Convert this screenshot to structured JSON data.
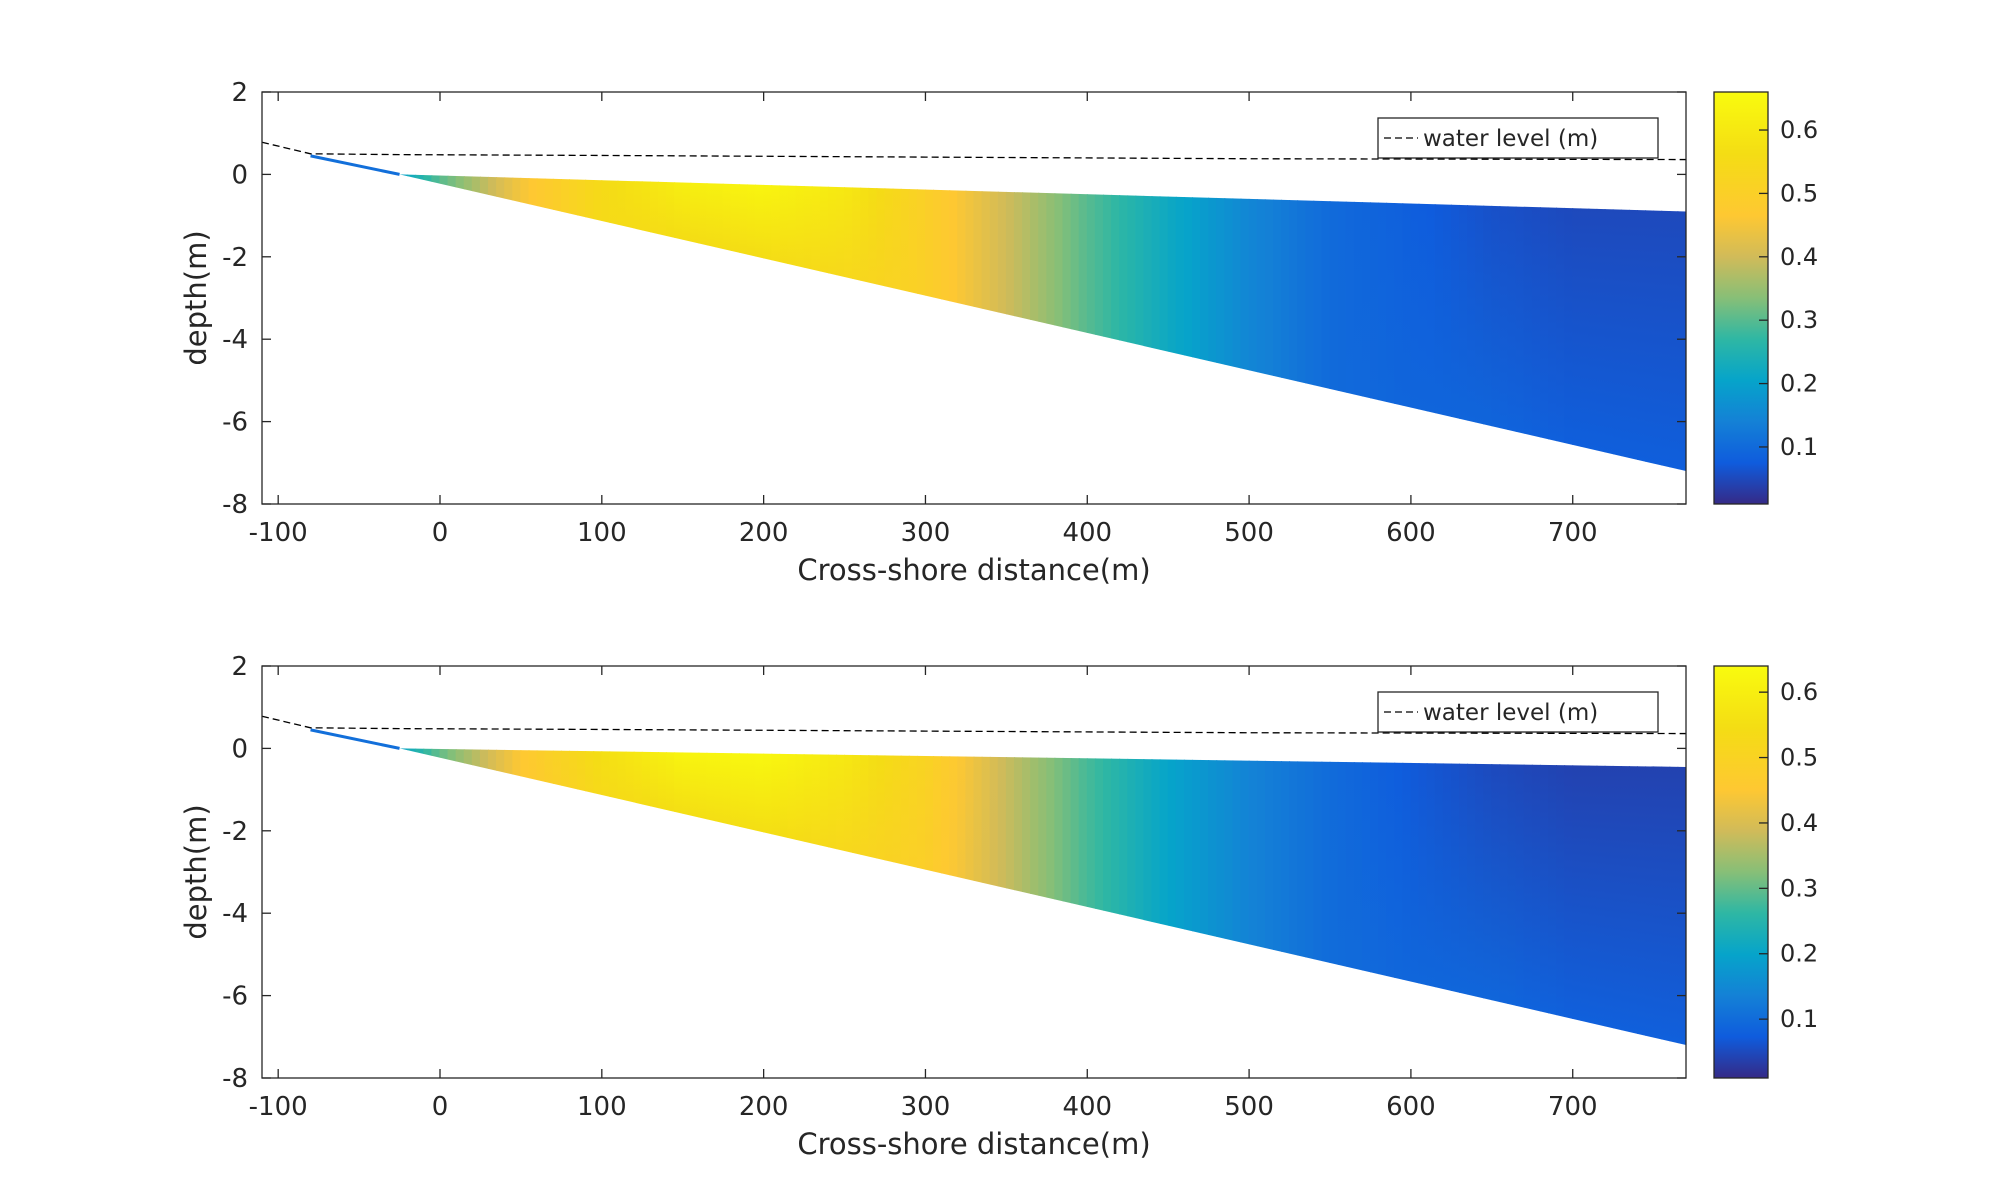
{
  "chart_data": [
    {
      "type": "heatmap",
      "xlabel": "Cross-shore distance(m)",
      "ylabel": "depth(m)",
      "xlim": [
        -110,
        770
      ],
      "ylim": [
        -8,
        2
      ],
      "xticks": [
        -100,
        0,
        100,
        200,
        300,
        400,
        500,
        600,
        700
      ],
      "xtick_labels": [
        "-100",
        "0",
        "100",
        "200",
        "300",
        "400",
        "500",
        "600",
        "700"
      ],
      "yticks": [
        2,
        0,
        -2,
        -4,
        -6,
        -8
      ],
      "ytick_labels": [
        "2",
        "0",
        "-2",
        "-4",
        "-6",
        "-8"
      ],
      "legend": {
        "label": "water level (m)",
        "location": "top-right"
      },
      "water_level": {
        "x": [
          -110,
          -80,
          -25,
          100,
          300,
          500,
          770
        ],
        "y": [
          0.78,
          0.5,
          0.48,
          0.46,
          0.42,
          0.38,
          0.36
        ]
      },
      "bed_profile": {
        "x": [
          -80,
          -25,
          770
        ],
        "y": [
          0.45,
          0.0,
          -7.2
        ]
      },
      "surface_profile": {
        "x": [
          -25,
          770
        ],
        "y": [
          0.0,
          -0.9
        ]
      },
      "field_profile": {
        "x": [
          -80,
          -25,
          0,
          50,
          100,
          150,
          200,
          250,
          300,
          350,
          400,
          450,
          500,
          550,
          600,
          650,
          700,
          770
        ],
        "top": [
          0.03,
          0.2,
          0.3,
          0.45,
          0.55,
          0.62,
          0.64,
          0.6,
          0.5,
          0.4,
          0.3,
          0.22,
          0.15,
          0.1,
          0.08,
          0.06,
          0.05,
          0.05
        ],
        "bed": [
          0.03,
          0.2,
          0.3,
          0.45,
          0.55,
          0.56,
          0.56,
          0.54,
          0.5,
          0.4,
          0.3,
          0.22,
          0.15,
          0.1,
          0.09,
          0.09,
          0.08,
          0.08
        ]
      },
      "colorbar": {
        "min": 0.01,
        "max": 0.66,
        "ticks": [
          0.1,
          0.2,
          0.3,
          0.4,
          0.5,
          0.6
        ],
        "tick_labels": [
          "0.1",
          "0.2",
          "0.3",
          "0.4",
          "0.5",
          "0.6"
        ]
      }
    },
    {
      "type": "heatmap",
      "xlabel": "Cross-shore distance(m)",
      "ylabel": "depth(m)",
      "xlim": [
        -110,
        770
      ],
      "ylim": [
        -8,
        2
      ],
      "xticks": [
        -100,
        0,
        100,
        200,
        300,
        400,
        500,
        600,
        700
      ],
      "xtick_labels": [
        "-100",
        "0",
        "100",
        "200",
        "300",
        "400",
        "500",
        "600",
        "700"
      ],
      "yticks": [
        2,
        0,
        -2,
        -4,
        -6,
        -8
      ],
      "ytick_labels": [
        "2",
        "0",
        "-2",
        "-4",
        "-6",
        "-8"
      ],
      "legend": {
        "label": "water level (m)",
        "location": "top-right"
      },
      "water_level": {
        "x": [
          -110,
          -80,
          -25,
          100,
          300,
          500,
          770
        ],
        "y": [
          0.78,
          0.5,
          0.48,
          0.46,
          0.42,
          0.38,
          0.36
        ]
      },
      "bed_profile": {
        "x": [
          -80,
          -25,
          770
        ],
        "y": [
          0.45,
          0.0,
          -7.2
        ]
      },
      "surface_profile": {
        "x": [
          -25,
          770
        ],
        "y": [
          0.0,
          -0.45
        ]
      },
      "field_profile": {
        "x": [
          -80,
          -25,
          0,
          50,
          100,
          150,
          200,
          250,
          300,
          350,
          400,
          450,
          500,
          550,
          600,
          650,
          700,
          770
        ],
        "top": [
          0.03,
          0.2,
          0.3,
          0.45,
          0.55,
          0.62,
          0.63,
          0.58,
          0.5,
          0.38,
          0.28,
          0.2,
          0.14,
          0.1,
          0.07,
          0.05,
          0.04,
          0.04
        ],
        "bed": [
          0.03,
          0.2,
          0.3,
          0.45,
          0.53,
          0.55,
          0.55,
          0.52,
          0.48,
          0.38,
          0.28,
          0.2,
          0.14,
          0.1,
          0.09,
          0.09,
          0.08,
          0.08
        ]
      },
      "colorbar": {
        "min": 0.01,
        "max": 0.64,
        "ticks": [
          0.1,
          0.2,
          0.3,
          0.4,
          0.5,
          0.6
        ],
        "tick_labels": [
          "0.1",
          "0.2",
          "0.3",
          "0.4",
          "0.5",
          "0.6"
        ]
      }
    }
  ]
}
